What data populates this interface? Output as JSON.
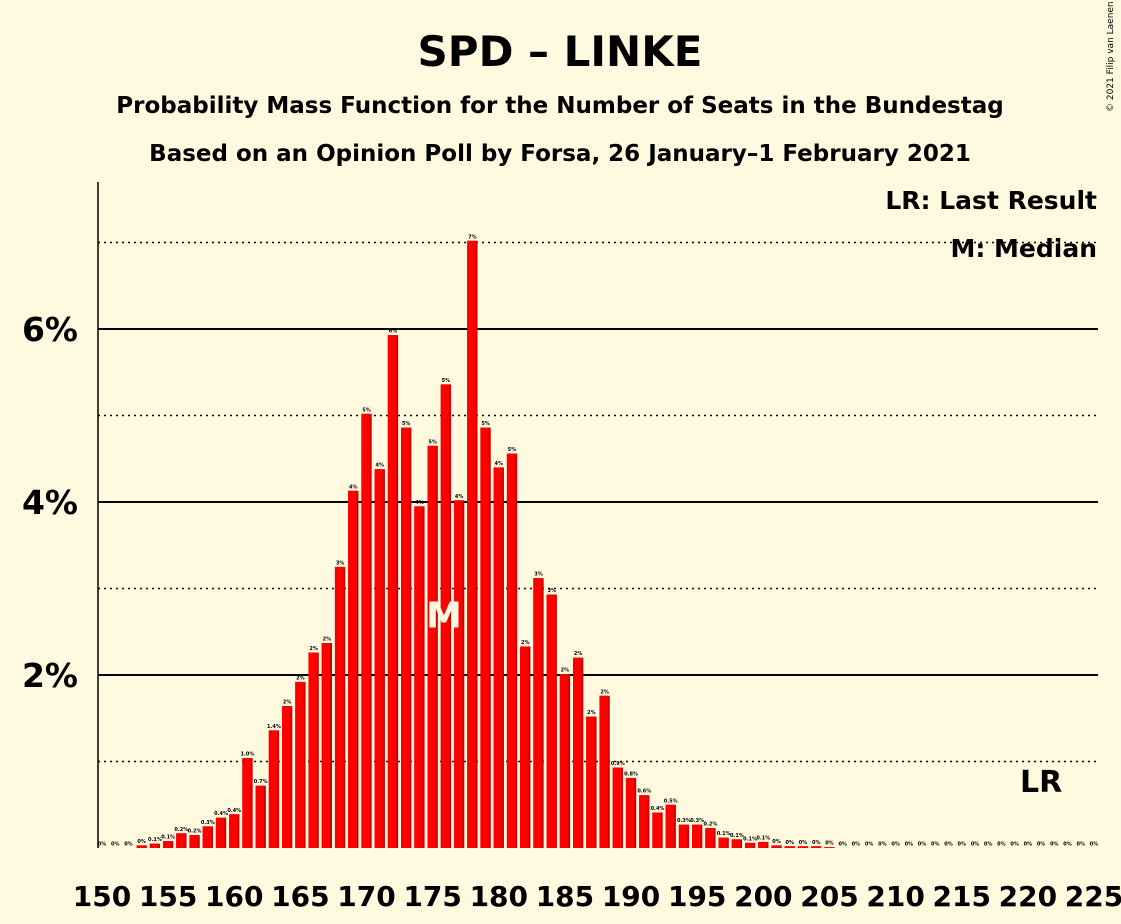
{
  "copyright": "© 2021 Filip van Laenen",
  "legend": {
    "lr": "LR: Last Result",
    "median": "M: Median"
  },
  "markers": {
    "median_label": "M",
    "median_seat": 176,
    "lr_label": "LR",
    "lr_seat": 221
  },
  "colors": {
    "background": "#FFF9E0",
    "bar": "#FF0000",
    "bar_shadow": "#CC0000",
    "median_label": "#FFF9E0"
  },
  "chart_data": {
    "type": "bar",
    "title": "SPD – LINKE",
    "subtitle": "Probability Mass Function for the Number of Seats in the Bundestag",
    "subtitle2": "Based on an Opinion Poll by Forsa, 26 January–1 February 2021",
    "xlabel": "",
    "ylabel": "",
    "x_range": [
      150,
      225
    ],
    "ylim": [
      0,
      7.7
    ],
    "x_ticks": [
      "150",
      "155",
      "160",
      "165",
      "170",
      "175",
      "180",
      "185",
      "190",
      "195",
      "200",
      "205",
      "210",
      "215",
      "220",
      "225"
    ],
    "y_ticks": [
      "2%",
      "4%",
      "6%"
    ],
    "y_tick_values": [
      2,
      4,
      6
    ],
    "minor_gridlines": [
      1,
      3,
      5,
      7
    ],
    "seats": [
      150,
      151,
      152,
      153,
      154,
      155,
      156,
      157,
      158,
      159,
      160,
      161,
      162,
      163,
      164,
      165,
      166,
      167,
      168,
      169,
      170,
      171,
      172,
      173,
      174,
      175,
      176,
      177,
      178,
      179,
      180,
      181,
      182,
      183,
      184,
      185,
      186,
      187,
      188,
      189,
      190,
      191,
      192,
      193,
      194,
      195,
      196,
      197,
      198,
      199,
      200,
      201,
      202,
      203,
      204,
      205,
      206,
      207,
      208,
      209,
      210,
      211,
      212,
      213,
      214,
      215,
      216,
      217,
      218,
      219,
      220,
      221,
      222,
      223,
      224,
      225
    ],
    "values": [
      0,
      0,
      0,
      0.03,
      0.05,
      0.08,
      0.17,
      0.15,
      0.25,
      0.35,
      0.39,
      1.04,
      0.72,
      1.36,
      1.64,
      1.92,
      2.26,
      2.37,
      3.25,
      4.13,
      5.02,
      4.38,
      5.93,
      4.86,
      3.95,
      4.65,
      5.36,
      4.02,
      7.02,
      4.86,
      4.4,
      4.56,
      2.33,
      3.12,
      2.93,
      2.01,
      2.2,
      1.52,
      1.76,
      0.93,
      0.81,
      0.61,
      0.41,
      0.5,
      0.27,
      0.27,
      0.23,
      0.12,
      0.1,
      0.06,
      0.07,
      0.03,
      0.02,
      0.02,
      0.02,
      0.01,
      0,
      0,
      0,
      0,
      0,
      0,
      0,
      0,
      0,
      0,
      0,
      0,
      0,
      0,
      0,
      0,
      0,
      0,
      0,
      0
    ],
    "data_labels": [
      "0%",
      "0%",
      "0%",
      "0%",
      "0.1%",
      "0.1%",
      "0.2%",
      "0.2%",
      "0.3%",
      "0.4%",
      "0.4%",
      "1.0%",
      "0.7%",
      "1.4%",
      "2%",
      "2%",
      "2%",
      "2%",
      "3%",
      "4%",
      "5%",
      "4%",
      "6%",
      "5%",
      "4%",
      "5%",
      "5%",
      "4%",
      "7%",
      "5%",
      "4%",
      "5%",
      "2%",
      "3%",
      "3%",
      "2%",
      "2%",
      "2%",
      "2%",
      "0.9%",
      "0.8%",
      "0.6%",
      "0.4%",
      "0.5%",
      "0.3%",
      "0.3%",
      "0.2%",
      "0.1%",
      "0.1%",
      "0.1%",
      "0.1%",
      "0%",
      "0%",
      "0%",
      "0%",
      "0%",
      "0%",
      "0%",
      "0%",
      "0%",
      "0%",
      "0%",
      "0%",
      "0%",
      "0%",
      "0%",
      "0%",
      "0%",
      "0%",
      "0%",
      "0%",
      "0%",
      "0%",
      "0%",
      "0%",
      "0%"
    ]
  }
}
